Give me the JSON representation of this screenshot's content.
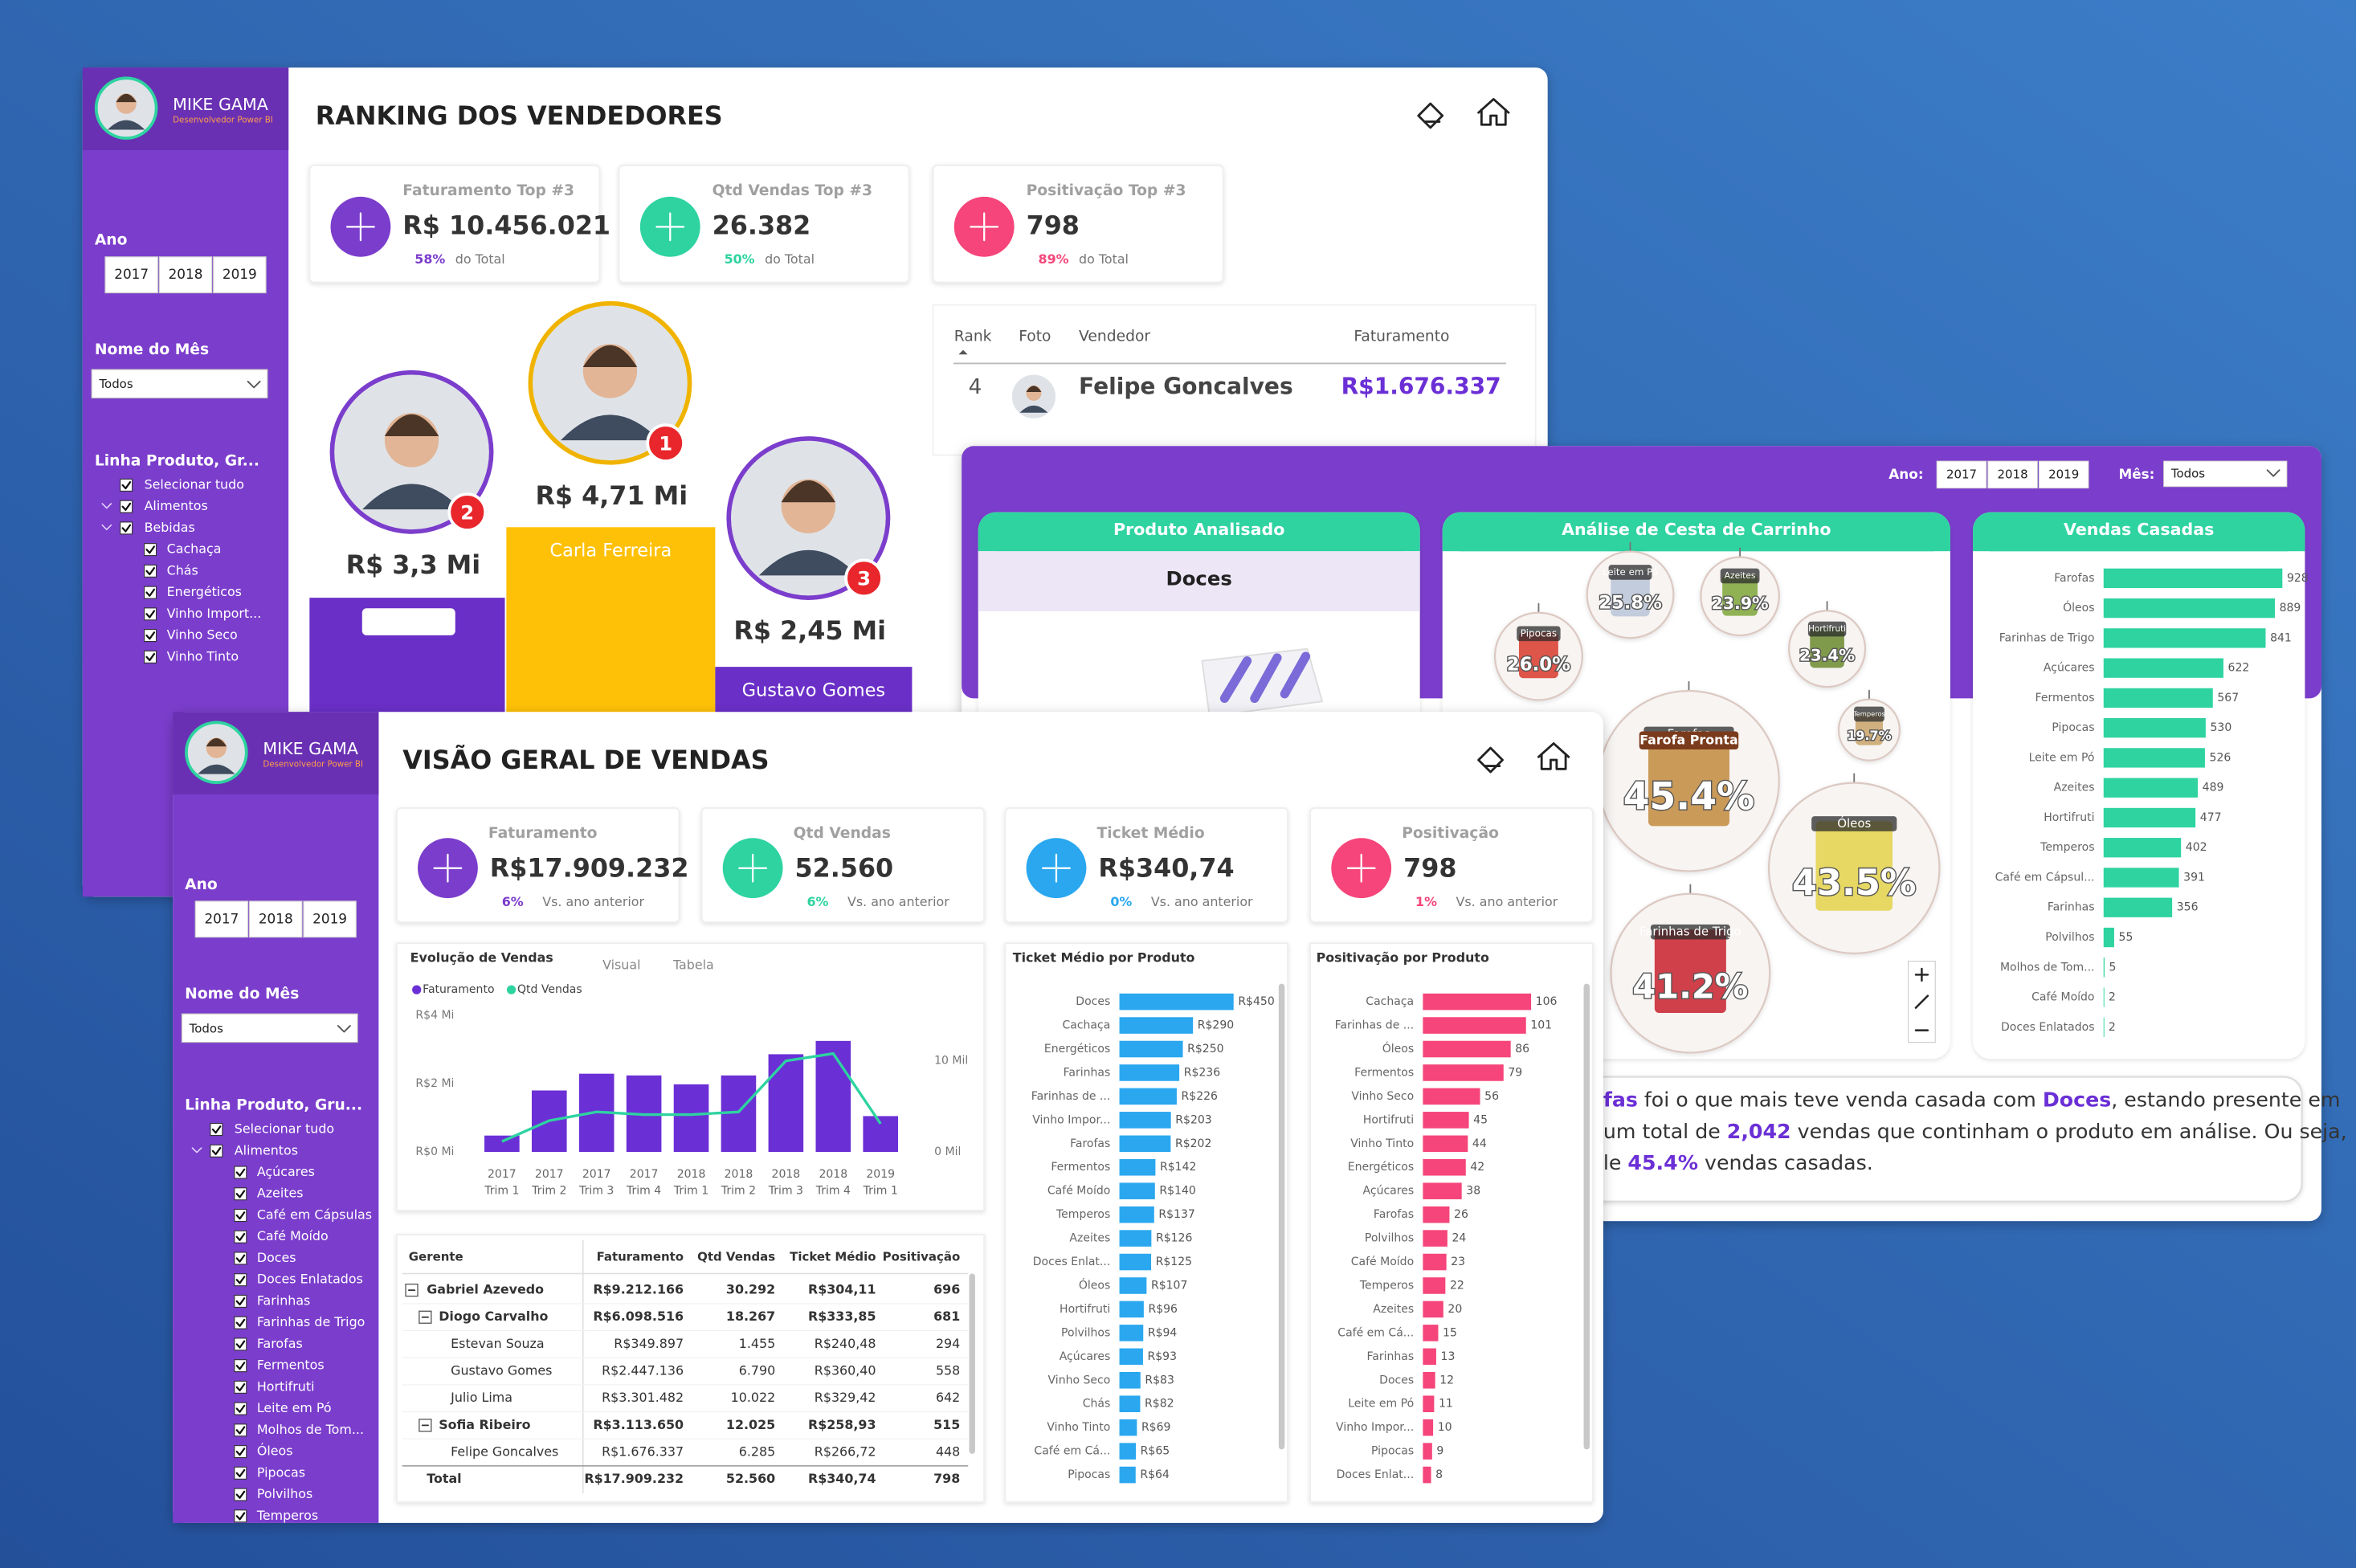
{
  "ranking": {
    "sidebar": {
      "user_name": "MIKE GAMA",
      "user_role": "Desenvolvedor Power BI",
      "year_label": "Ano",
      "years": [
        "2017",
        "2018",
        "2019"
      ],
      "month_label": "Nome do Mês",
      "month_value": "Todos",
      "product_label": "Linha Produto, Gr...",
      "product_tree": {
        "all": "Selecionar tudo",
        "groups": [
          {
            "name": "Alimentos"
          },
          {
            "name": "Bebidas",
            "items": [
              "Cachaça",
              "Chás",
              "Energéticos",
              "Vinho Import...",
              "Vinho Seco",
              "Vinho Tinto"
            ]
          }
        ]
      }
    },
    "title": "RANKING DOS VENDEDORES",
    "kpis": [
      {
        "title": "Faturamento Top #3",
        "value": "R$ 10.456.021",
        "share": "58%",
        "share_note": "do Total"
      },
      {
        "title": "Qtd Vendas Top #3",
        "value": "26.382",
        "share": "50%",
        "share_note": "do Total"
      },
      {
        "title": "Positivação Top #3",
        "value": "798",
        "share": "89%",
        "share_note": "do Total"
      }
    ],
    "podium": [
      {
        "position": "1",
        "amount": "R$ 4,71 Mi",
        "name": "Carla Ferreira"
      },
      {
        "position": "2",
        "amount": "R$ 3,3 Mi"
      },
      {
        "position": "3",
        "amount": "R$ 2,45 Mi",
        "name": "Gustavo Gomes"
      }
    ],
    "table": {
      "columns": [
        "Rank",
        "Foto",
        "Vendedor",
        "Faturamento"
      ],
      "rows": [
        {
          "rank": "4",
          "seller": "Felipe Goncalves",
          "revenue": "R$1.676.337"
        }
      ]
    }
  },
  "cesta": {
    "filters": {
      "year_label": "Ano:",
      "years": [
        "2017",
        "2018",
        "2019"
      ],
      "month_label": "Mês:",
      "month_value": "Todos"
    },
    "product_panel": {
      "title": "Produto Analisado",
      "product": "Doces"
    },
    "basket_chart": {
      "type": "bubble",
      "title": "Análise de Cesta de Carrinho",
      "package_text": "Farofa Pronta",
      "categories": [
        "Leite em Pó",
        "Azeites",
        "Pipocas",
        "Hortifruti",
        "Temperos",
        "Farofas",
        "Óleos",
        "Farinhas de Trigo"
      ],
      "values": [
        25.8,
        23.9,
        26.0,
        23.4,
        19.7,
        45.4,
        43.5,
        41.2
      ],
      "value_labels": [
        "25.8%",
        "23.9%",
        "26.0%",
        "23.4%",
        "19.7%",
        "45.4%",
        "43.5%",
        "41.2%"
      ]
    },
    "sales_chart": {
      "type": "hbar",
      "title": "Vendas Casadas",
      "color": "#2ed3a0",
      "categories": [
        "Farofas",
        "Óleos",
        "Farinhas de Trigo",
        "Açúcares",
        "Fermentos",
        "Pipocas",
        "Leite em Pó",
        "Azeites",
        "Hortifruti",
        "Temperos",
        "Café em Cápsul...",
        "Farinhas",
        "Polvilhos",
        "Molhos de Tom...",
        "Café Moído",
        "Doces Enlatados"
      ],
      "values": [
        928,
        889,
        841,
        622,
        567,
        530,
        526,
        489,
        477,
        402,
        391,
        356,
        55,
        5,
        2,
        2
      ]
    },
    "summary": {
      "lines": [
        [
          {
            "text": "fas",
            "bold": true
          },
          " foi o que mais teve venda casada com ",
          {
            "text": "Doces",
            "bold": true
          },
          ", estando presente em"
        ],
        [
          "um total de ",
          {
            "text": "2,042",
            "bold": true
          },
          " vendas que continham o produto em análise. Ou seja,"
        ],
        [
          "le ",
          {
            "text": "45.4%",
            "bold": true
          },
          " vendas casadas."
        ]
      ]
    }
  },
  "visao": {
    "sidebar": {
      "user_name": "MIKE GAMA",
      "user_role": "Desenvolvedor Power BI",
      "year_label": "Ano",
      "years": [
        "2017",
        "2018",
        "2019"
      ],
      "month_label": "Nome do Mês",
      "month_value": "Todos",
      "product_label": "Linha Produto, Gru...",
      "product_tree": {
        "all": "Selecionar tudo",
        "groups": [
          {
            "name": "Alimentos",
            "items": [
              "Açúcares",
              "Azeites",
              "Café em Cápsulas",
              "Café Moído",
              "Doces",
              "Doces Enlatados",
              "Farinhas",
              "Farinhas de Trigo",
              "Farofas",
              "Fermentos",
              "Hortifruti",
              "Leite em Pó",
              "Molhos de Tom...",
              "Óleos",
              "Pipocas",
              "Polvilhos",
              "Temperos"
            ]
          }
        ]
      }
    },
    "title": "VISÃO GERAL DE VENDAS",
    "kpis": [
      {
        "title": "Faturamento",
        "value": "R$17.909.232",
        "change": "6%",
        "change_note": "Vs. ano anterior"
      },
      {
        "title": "Qtd Vendas",
        "value": "52.560",
        "change": "6%",
        "change_note": "Vs. ano anterior"
      },
      {
        "title": "Ticket Médio",
        "value": "R$340,74",
        "change": "0%",
        "change_note": "Vs. ano anterior"
      },
      {
        "title": "Positivação",
        "value": "798",
        "change": "1%",
        "change_note": "Vs. ano anterior"
      }
    ],
    "evolution_chart": {
      "type": "combo",
      "title": "Evolução de Vendas",
      "tabs": [
        "Visual",
        "Tabela"
      ],
      "categories": [
        [
          "2017",
          "Trim 1"
        ],
        [
          "2017",
          "Trim 2"
        ],
        [
          "2017",
          "Trim 3"
        ],
        [
          "2017",
          "Trim 4"
        ],
        [
          "2018",
          "Trim 1"
        ],
        [
          "2018",
          "Trim 2"
        ],
        [
          "2018",
          "Trim 3"
        ],
        [
          "2018",
          "Trim 4"
        ],
        [
          "2019",
          "Trim 1"
        ]
      ],
      "series": [
        {
          "name": "Faturamento",
          "color": "#6b2fd6",
          "values": [
            480000,
            1800000,
            2290000,
            2240000,
            1980000,
            2240000,
            2860000,
            3250000,
            1050000
          ]
        },
        {
          "name": "Qtd Vendas",
          "color": "#2ed3a0",
          "axis": "y2",
          "values": [
            1150,
            3440,
            4400,
            4100,
            4100,
            4400,
            10000,
            10800,
            3100
          ]
        }
      ],
      "ylim": [
        0,
        4000000
      ],
      "yticks": [
        {
          "value": 0,
          "label": "R$0 Mi"
        },
        {
          "value": 2000000,
          "label": "R$2 Mi"
        },
        {
          "value": 4000000,
          "label": "R$4 Mi"
        }
      ],
      "y2lim": [
        0,
        15000
      ],
      "y2ticks": [
        {
          "value": 0,
          "label": "0 Mil"
        },
        {
          "value": 10000,
          "label": "10 Mil"
        }
      ]
    },
    "ticket_chart": {
      "type": "hbar",
      "title": "Ticket Médio por Produto",
      "color": "#2aa7ef",
      "categories": [
        "Doces",
        "Cachaça",
        "Energéticos",
        "Farinhas",
        "Farinhas de ...",
        "Vinho Impor...",
        "Farofas",
        "Fermentos",
        "Café Moído",
        "Temperos",
        "Azeites",
        "Doces Enlat...",
        "Óleos",
        "Hortifruti",
        "Polvilhos",
        "Açúcares",
        "Vinho Seco",
        "Chás",
        "Vinho Tinto",
        "Café em Cá...",
        "Pipocas"
      ],
      "values": [
        450,
        290,
        250,
        236,
        226,
        203,
        202,
        142,
        140,
        137,
        126,
        125,
        107,
        96,
        94,
        93,
        83,
        82,
        69,
        65,
        64
      ],
      "value_labels": [
        "R$450",
        "R$290",
        "R$250",
        "R$236",
        "R$226",
        "R$203",
        "R$202",
        "R$142",
        "R$140",
        "R$137",
        "R$126",
        "R$125",
        "R$107",
        "R$96",
        "R$94",
        "R$93",
        "R$83",
        "R$82",
        "R$69",
        "R$65",
        "R$64"
      ]
    },
    "positivacao_chart": {
      "type": "hbar",
      "title": "Positivação por Produto",
      "color": "#f5457a",
      "categories": [
        "Cachaça",
        "Farinhas de ...",
        "Óleos",
        "Fermentos",
        "Vinho Seco",
        "Hortifruti",
        "Vinho Tinto",
        "Energéticos",
        "Açúcares",
        "Farofas",
        "Polvilhos",
        "Café Moído",
        "Temperos",
        "Azeites",
        "Café em Cá...",
        "Farinhas",
        "Doces",
        "Leite em Pó",
        "Vinho Impor...",
        "Pipocas",
        "Doces Enlat..."
      ],
      "values": [
        106,
        101,
        86,
        79,
        56,
        45,
        44,
        42,
        38,
        26,
        24,
        23,
        22,
        20,
        15,
        13,
        12,
        11,
        10,
        9,
        8
      ]
    },
    "table": {
      "columns": [
        "Gerente",
        "Faturamento",
        "Qtd Vendas",
        "Ticket Médio",
        "Positivação"
      ],
      "managers": [
        {
          "name": "Gabriel Azevedo",
          "cells": [
            "R$9.212.166",
            "30.292",
            "R$304,11",
            "696"
          ],
          "coordinators": [
            {
              "name": "Diogo Carvalho",
              "cells": [
                "R$6.098.516",
                "18.267",
                "R$333,85",
                "681"
              ],
              "sellers": [
                {
                  "name": "Estevan Souza",
                  "cells": [
                    "R$349.897",
                    "1.455",
                    "R$240,48",
                    "294"
                  ]
                },
                {
                  "name": "Gustavo Gomes",
                  "cells": [
                    "R$2.447.136",
                    "6.790",
                    "R$360,40",
                    "558"
                  ]
                },
                {
                  "name": "Julio Lima",
                  "cells": [
                    "R$3.301.482",
                    "10.022",
                    "R$329,42",
                    "642"
                  ]
                }
              ]
            },
            {
              "name": "Sofia Ribeiro",
              "cells": [
                "R$3.113.650",
                "12.025",
                "R$258,93",
                "515"
              ],
              "sellers": [
                {
                  "name": "Felipe Goncalves",
                  "cells": [
                    "R$1.676.337",
                    "6.285",
                    "R$266,72",
                    "448"
                  ]
                }
              ]
            }
          ]
        }
      ],
      "total": {
        "name": "Total",
        "cells": [
          "R$17.909.232",
          "52.560",
          "R$340,74",
          "798"
        ]
      }
    }
  }
}
